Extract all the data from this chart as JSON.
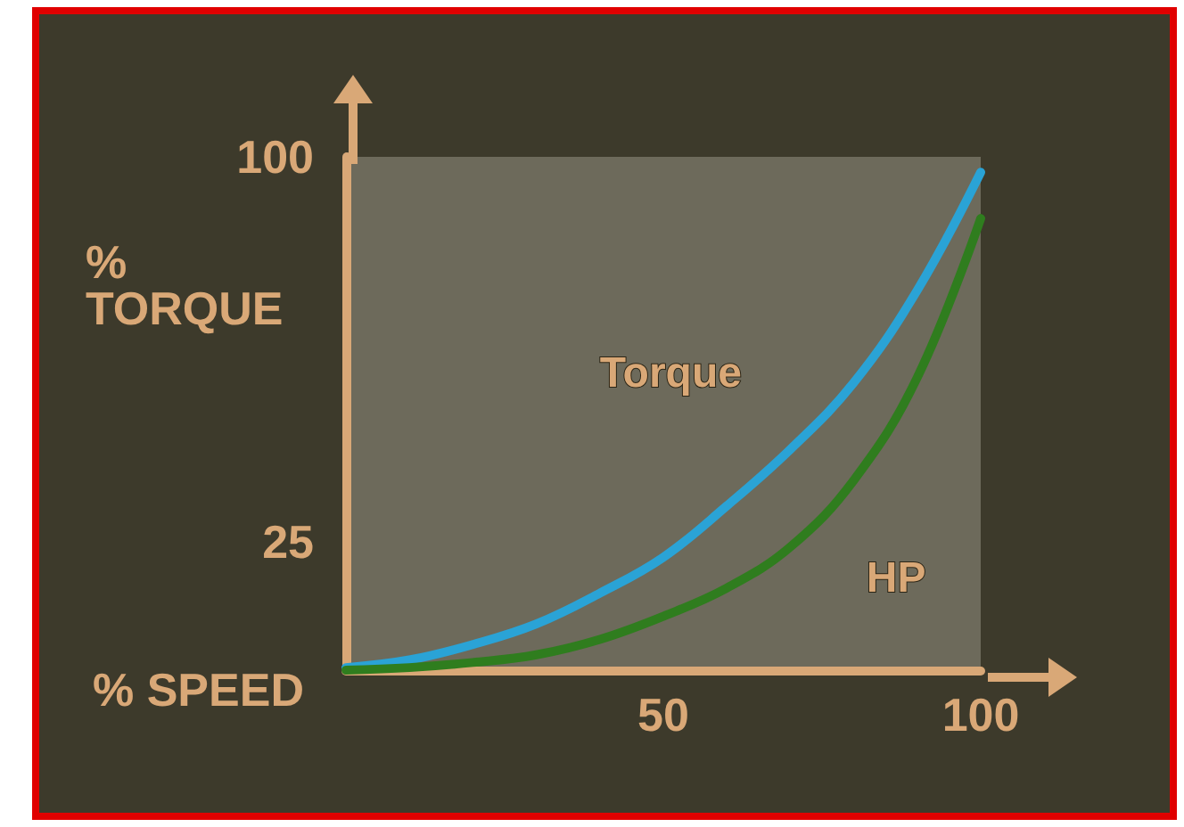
{
  "chart_data": {
    "type": "line",
    "xlabel": "% SPEED",
    "ylabel": "%\nTORQUE",
    "x": [
      0,
      10,
      20,
      30,
      40,
      50,
      60,
      70,
      80,
      90,
      100
    ],
    "series": [
      {
        "name": "Torque",
        "color": "#2aa3d6",
        "values": [
          0.5,
          2,
          5,
          9,
          15,
          22,
          32,
          43,
          56,
          74,
          97
        ]
      },
      {
        "name": "HP",
        "color": "#2f7d1e",
        "values": [
          0,
          0.5,
          1.5,
          3,
          6,
          10.5,
          16,
          24,
          37,
          57,
          88
        ]
      }
    ],
    "xlim": [
      0,
      100
    ],
    "ylim": [
      0,
      100
    ],
    "xticks": [
      50,
      100
    ],
    "yticks": [
      25,
      100
    ],
    "grid": false,
    "legend": false,
    "marker": "none",
    "line_style": "solid"
  }
}
